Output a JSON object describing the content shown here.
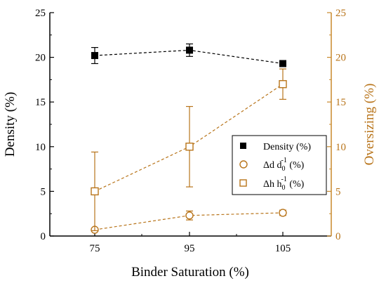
{
  "chart_data": {
    "type": "line",
    "xlabel": "Binder Saturation (%)",
    "ylabel_left": "Density (%)",
    "ylabel_right": "Oversizing (%)",
    "categories": [
      "75",
      "95",
      "105"
    ],
    "y_left_ticks": [
      0,
      5,
      10,
      15,
      20,
      25
    ],
    "y_right_ticks": [
      0,
      5,
      10,
      15,
      20,
      25
    ],
    "ylim": [
      0,
      25
    ],
    "grid": false,
    "legend_position": "center-right",
    "series": [
      {
        "name": "Density (%)",
        "axis": "left",
        "marker": "filled-square",
        "color": "#000000",
        "values": [
          20.2,
          20.8,
          19.3
        ],
        "errors": [
          0.9,
          0.7,
          0.2
        ]
      },
      {
        "name_base": "Δd d",
        "name_sub": "0",
        "name_sup": "-1",
        "name_tail": " (%)",
        "axis": "right",
        "marker": "open-circle",
        "color": "#b8741a",
        "values": [
          0.7,
          2.3,
          2.6
        ],
        "errors": [
          0.1,
          0.5,
          0.3
        ]
      },
      {
        "name_base": "Δh h",
        "name_sub": "0",
        "name_sup": "-1",
        "name_tail": " (%)",
        "axis": "right",
        "marker": "open-square",
        "color": "#b8741a",
        "values": [
          5.0,
          10.0,
          17.0
        ],
        "errors": [
          4.4,
          4.5,
          1.7
        ]
      }
    ]
  }
}
